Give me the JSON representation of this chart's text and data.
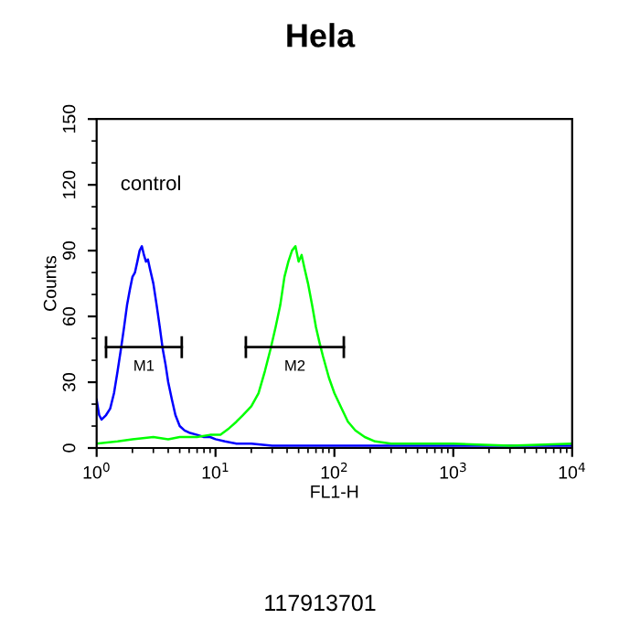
{
  "chart_data": {
    "type": "line",
    "title": "Hela",
    "xlabel": "FL1-H",
    "ylabel": "Counts",
    "log": "x",
    "xlim": [
      1,
      10000
    ],
    "xticks": [
      {
        "value": 1,
        "label": "10$^{0}$"
      },
      {
        "value": 10,
        "label": "10$^{1}$"
      },
      {
        "value": 100,
        "label": "10$^{2}$"
      },
      {
        "value": 1000,
        "label": "10$^{3}$"
      },
      {
        "value": 10000,
        "label": "10$^{4}$"
      }
    ],
    "ylim": [
      0,
      150
    ],
    "yticks": [
      0,
      30,
      60,
      90,
      120,
      150
    ],
    "grid": false,
    "legend": false,
    "marker": "none",
    "line_style": "solid",
    "annotations": [
      "control",
      "117913701"
    ],
    "series": [
      {
        "type": "line",
        "name": "M1",
        "color": "#000000",
        "x": [
          1.2,
          5.2
        ],
        "values": [
          46,
          46
        ],
        "errors": [
          5,
          5
        ]
      },
      {
        "type": "line",
        "name": "M2",
        "color": "#000000",
        "x": [
          18,
          120
        ],
        "values": [
          46,
          46
        ],
        "errors": [
          5,
          5
        ]
      },
      {
        "color": "#0000ff",
        "x": [
          1.0,
          1.05,
          1.1,
          1.2,
          1.3,
          1.4,
          1.5,
          1.6,
          1.7,
          1.8,
          1.9,
          2.0,
          2.1,
          2.2,
          2.3,
          2.4,
          2.5,
          2.6,
          2.7,
          2.8,
          3.0,
          3.2,
          3.4,
          3.6,
          3.8,
          4.0,
          4.3,
          4.6,
          5.0,
          5.5,
          6,
          7,
          8,
          9,
          10,
          12,
          15,
          20,
          30,
          50,
          100,
          200,
          500,
          1000,
          10000
        ],
        "values": [
          22,
          15,
          13,
          15,
          18,
          25,
          35,
          45,
          55,
          65,
          72,
          78,
          80,
          85,
          90,
          92,
          88,
          85,
          86,
          82,
          75,
          65,
          55,
          45,
          38,
          30,
          22,
          15,
          10,
          8,
          7,
          6,
          5,
          5,
          4,
          3,
          2,
          2,
          1,
          1,
          1,
          1,
          1,
          1,
          1
        ]
      },
      {
        "color": "#00ff00",
        "x": [
          1.0,
          1.5,
          2,
          3,
          4,
          5,
          7,
          9,
          11,
          13,
          15,
          17,
          20,
          23,
          26,
          29,
          32,
          35,
          38,
          41,
          44,
          47,
          50,
          53,
          56,
          60,
          65,
          70,
          75,
          80,
          90,
          100,
          115,
          130,
          150,
          180,
          220,
          300,
          500,
          1000,
          3000,
          10000
        ],
        "values": [
          2,
          3,
          4,
          5,
          4,
          5,
          5,
          6,
          6,
          9,
          12,
          15,
          19,
          25,
          35,
          45,
          55,
          65,
          78,
          85,
          90,
          92,
          85,
          88,
          82,
          75,
          65,
          55,
          48,
          42,
          32,
          25,
          18,
          12,
          8,
          5,
          3,
          2,
          2,
          2,
          1,
          2
        ]
      }
    ]
  }
}
